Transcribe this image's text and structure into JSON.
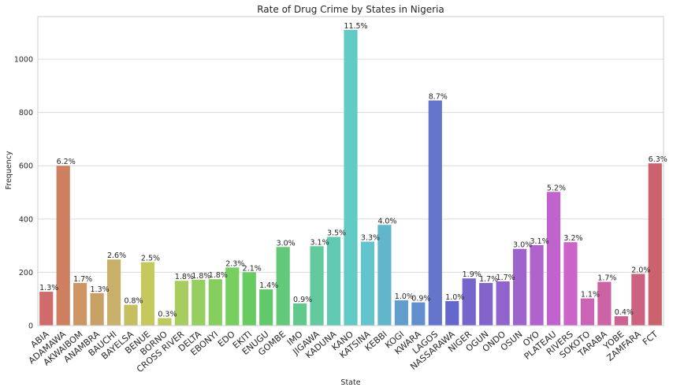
{
  "chart_data": {
    "type": "bar",
    "title": "Rate of Drug Crime by States in Nigeria",
    "xlabel": "State",
    "ylabel": "Frequency",
    "ylim": [
      0,
      1160
    ],
    "yticks": [
      0,
      200,
      400,
      600,
      800,
      1000
    ],
    "grid": "horizontal",
    "categories": [
      "ABIA",
      "ADAMAWA",
      "AKWAIBOM",
      "ANAMBRA",
      "BAUCHI",
      "BAYELSA",
      "BENUE",
      "BORNO",
      "CROSS RIVER",
      "DELTA",
      "EBONYI",
      "EDO",
      "EKITI",
      "ENUGU",
      "GOMBE",
      "IMO",
      "JIGAWA",
      "KADUNA",
      "KANO",
      "KATSINA",
      "KEBBI",
      "KOGI",
      "KWARA",
      "LAGOS",
      "NASSARAWA",
      "NIGER",
      "OGUN",
      "ONDO",
      "OSUN",
      "OYO",
      "PLATEAU",
      "RIVERS",
      "SOKOTO",
      "TARABA",
      "YOBE",
      "ZAMFARA",
      "FCT"
    ],
    "values": [
      127,
      600,
      160,
      122,
      248,
      78,
      238,
      28,
      168,
      172,
      174,
      218,
      200,
      136,
      295,
      83,
      298,
      333,
      1110,
      315,
      378,
      95,
      87,
      845,
      92,
      177,
      160,
      166,
      288,
      302,
      502,
      313,
      102,
      164,
      35,
      194,
      609
    ],
    "labels": [
      "1.3%",
      "6.2%",
      "1.7%",
      "1.3%",
      "2.6%",
      "0.8%",
      "2.5%",
      "0.3%",
      "1.8%",
      "1.8%",
      "1.8%",
      "2.3%",
      "2.1%",
      "1.4%",
      "3.0%",
      "0.9%",
      "3.1%",
      "3.5%",
      "11.5%",
      "3.3%",
      "4.0%",
      "1.0%",
      "0.9%",
      "8.7%",
      "1.0%",
      "1.9%",
      "1.7%",
      "1.7%",
      "3.0%",
      "3.1%",
      "5.2%",
      "3.2%",
      "1.1%",
      "1.7%",
      "0.4%",
      "2.0%",
      "6.3%"
    ],
    "colors": [
      "#cf6b6b",
      "#cd7f5f",
      "#cb9565",
      "#c9a066",
      "#c9b06a",
      "#c5bf62",
      "#c4c85d",
      "#bcc95e",
      "#a6cd5e",
      "#95cf5f",
      "#86cf5e",
      "#76cf5f",
      "#66cc62",
      "#62c96b",
      "#62c97a",
      "#62c98c",
      "#62ca9e",
      "#62cab2",
      "#62cac4",
      "#62c4cc",
      "#62b6cc",
      "#629ecb",
      "#6290cc",
      "#6476cc",
      "#6667cc",
      "#7665cc",
      "#8263cc",
      "#9163cc",
      "#9f63cc",
      "#b063cc",
      "#c163cc",
      "#cb63c8",
      "#cb63b6",
      "#cb63a4",
      "#cb6392",
      "#cb6380",
      "#cb636e"
    ]
  }
}
